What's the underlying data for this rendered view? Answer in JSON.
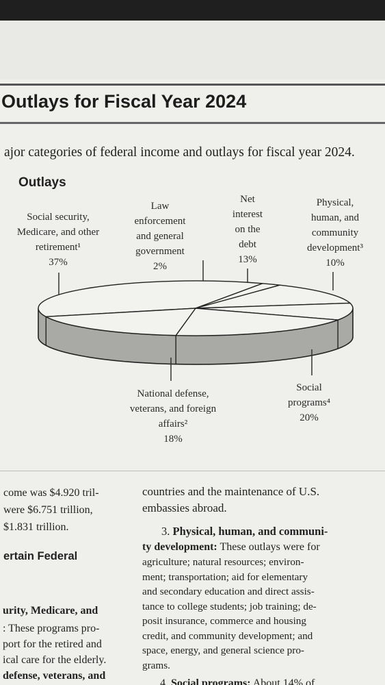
{
  "title": "Outlays for Fiscal Year 2024",
  "intro": "ajor categories of federal income and outlays for fiscal year 2024.",
  "chart": {
    "heading": "Outlays",
    "slices": [
      {
        "label": [
          "Social security,",
          "Medicare, and other",
          "retirement¹"
        ],
        "pct": "37%",
        "value": 37
      },
      {
        "label": [
          "Law",
          "enforcement",
          "and general",
          "government"
        ],
        "pct": "2%",
        "value": 2
      },
      {
        "label": [
          "Net",
          "interest",
          "on the",
          "debt"
        ],
        "pct": "13%",
        "value": 13
      },
      {
        "label": [
          "Physical,",
          "human, and",
          "community",
          "development³"
        ],
        "pct": "10%",
        "value": 10
      },
      {
        "label": [
          "Social",
          "programs⁴"
        ],
        "pct": "20%",
        "value": 20
      },
      {
        "label": [
          "National defense,",
          "veterans, and foreign",
          "affairs²"
        ],
        "pct": "18%",
        "value": 18
      }
    ]
  },
  "left_col": {
    "l1": "come was $4.920 tril-",
    "l2": "were $6.751 trillion,",
    "l3": "$1.831 trillion.",
    "h1": "ertain Federal",
    "p1": "urity, Medicare, and",
    "p2": ": These programs pro-",
    "p3": "port for the retired and",
    "p4": "ical care for the elderly.",
    "p5": "defense, veterans, and"
  },
  "right_col": {
    "r1": "countries and the maintenance of U.S.",
    "r2": "embassies abroad.",
    "item3_num": "3.",
    "item3_head_a": "Physical, human, and communi-",
    "item3_head_b": "ty development:",
    "item3_tail_b": " These outlays were for",
    "r5": "agriculture; natural resources; environ-",
    "r6": "ment; transportation; aid for elementary",
    "r7": "and secondary education and direct assis-",
    "r8": "tance to college students; job training; de-",
    "r9": "posit insurance, commerce and housing",
    "r10": "credit, and community development; and",
    "r11": "space, energy, and general science pro-",
    "r12": "grams.",
    "item4_num": "4.",
    "item4_head": "Social programs:",
    "item4_tail": " About 14% of"
  }
}
